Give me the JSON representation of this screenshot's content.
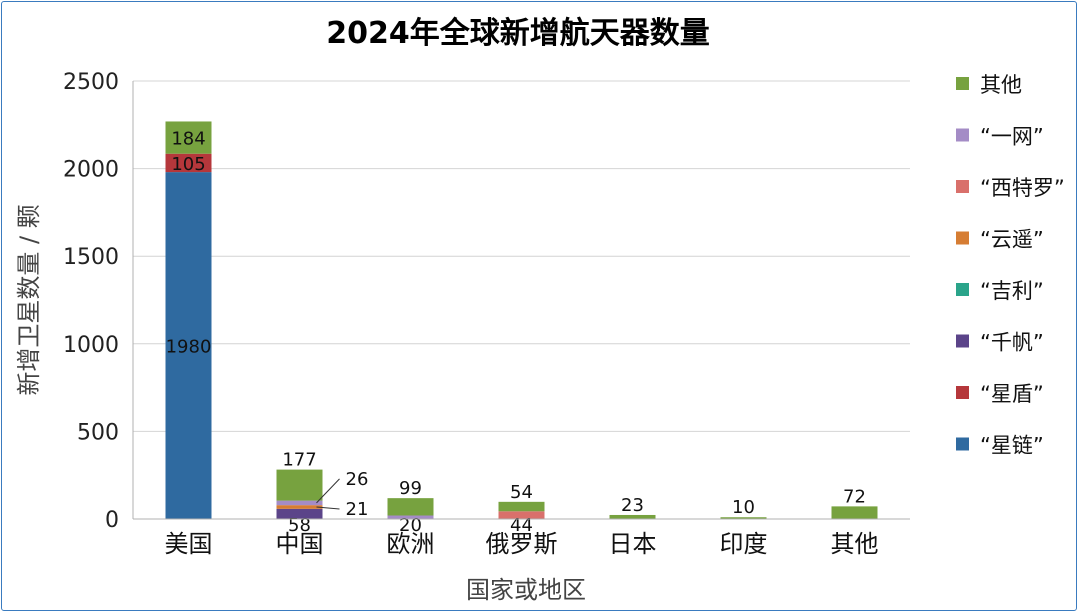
{
  "chart_data": {
    "type": "bar",
    "stacked": true,
    "title": "2024年全球新增航天器数量",
    "xlabel": "国家或地区",
    "ylabel": "新增卫星数量 / 颗",
    "ylim": [
      0,
      2500
    ],
    "yticks": [
      0,
      500,
      1000,
      1500,
      2000,
      2500
    ],
    "grid": true,
    "legend_position": "right",
    "categories": [
      "美国",
      "中国",
      "欧洲",
      "俄罗斯",
      "日本",
      "印度",
      "其他"
    ],
    "series": [
      {
        "name": "“星链”",
        "color": "#2f6aa0",
        "values": [
          1980,
          0,
          0,
          0,
          0,
          0,
          0
        ]
      },
      {
        "name": "“星盾”",
        "color": "#b5373b",
        "values": [
          105,
          0,
          0,
          0,
          0,
          0,
          0
        ]
      },
      {
        "name": "“千帆”",
        "color": "#5b4489",
        "values": [
          0,
          58,
          0,
          0,
          0,
          0,
          0
        ]
      },
      {
        "name": "“吉利”",
        "color": "#2aa48a",
        "values": [
          0,
          0,
          0,
          0,
          0,
          0,
          0
        ]
      },
      {
        "name": "“云遥”",
        "color": "#d67d33",
        "values": [
          0,
          21,
          0,
          0,
          0,
          0,
          0
        ]
      },
      {
        "name": "“西特罗”",
        "color": "#d9706b",
        "values": [
          0,
          0,
          0,
          44,
          0,
          0,
          0
        ]
      },
      {
        "name": "“一网”",
        "color": "#a48cc6",
        "values": [
          0,
          26,
          20,
          0,
          0,
          0,
          0
        ]
      },
      {
        "name": "其他",
        "color": "#77a23f",
        "values": [
          184,
          177,
          99,
          54,
          23,
          10,
          72
        ]
      }
    ],
    "data_labels": [
      {
        "category": "美国",
        "series": "“星链”",
        "text": "1980"
      },
      {
        "category": "美国",
        "series": "“星盾”",
        "text": "105"
      },
      {
        "category": "美国",
        "series": "其他",
        "text": "184"
      },
      {
        "category": "中国",
        "series": "“千帆”",
        "text": "58"
      },
      {
        "category": "中国",
        "series": "“云遥”",
        "text": "21"
      },
      {
        "category": "中国",
        "series": "“一网”",
        "text": "26"
      },
      {
        "category": "中国",
        "series": "其他",
        "text": "177"
      },
      {
        "category": "欧洲",
        "series": "“一网”",
        "text": "20"
      },
      {
        "category": "欧洲",
        "series": "其他",
        "text": "99"
      },
      {
        "category": "俄罗斯",
        "series": "“西特罗”",
        "text": "44"
      },
      {
        "category": "俄罗斯",
        "series": "其他",
        "text": "54"
      },
      {
        "category": "日本",
        "series": "其他",
        "text": "23"
      },
      {
        "category": "印度",
        "series": "其他",
        "text": "10"
      },
      {
        "category": "其他",
        "series": "其他",
        "text": "72"
      }
    ],
    "legend_order": [
      "其他",
      "“一网”",
      "“西特罗”",
      "“云遥”",
      "“吉利”",
      "“千帆”",
      "“星盾”",
      "“星链”"
    ]
  }
}
